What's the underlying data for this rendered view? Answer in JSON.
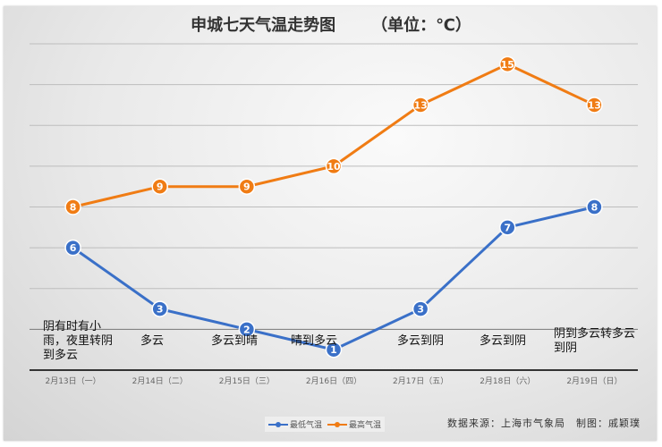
{
  "chart_data": {
    "type": "line",
    "title": "申城七天气温走势图",
    "unit": "（单位：℃）",
    "categories": [
      "2月13日（一）",
      "2月14日（二）",
      "2月15日（三）",
      "2月16日（四）",
      "2月17日（五）",
      "2月18日（六）",
      "2月19日（日）"
    ],
    "weather": [
      "阴有时有小雨，夜里转阴到多云",
      "多云",
      "多云到晴",
      "晴到多云",
      "多云到阴",
      "多云到阴",
      "阴到多云转多云到阴"
    ],
    "series": [
      {
        "name": "最低气温",
        "values": [
          6,
          3,
          2,
          1,
          3,
          7,
          8
        ],
        "color": "#3a70c8"
      },
      {
        "name": "最高气温",
        "values": [
          8,
          9,
          9,
          10,
          13,
          15,
          13
        ],
        "color": "#f07c14"
      }
    ],
    "ylim": [
      0,
      16
    ],
    "grid": true,
    "legend": "bottom-center"
  },
  "footer": {
    "source": "数据来源：上海市气象局　制图：戚颖璞"
  }
}
